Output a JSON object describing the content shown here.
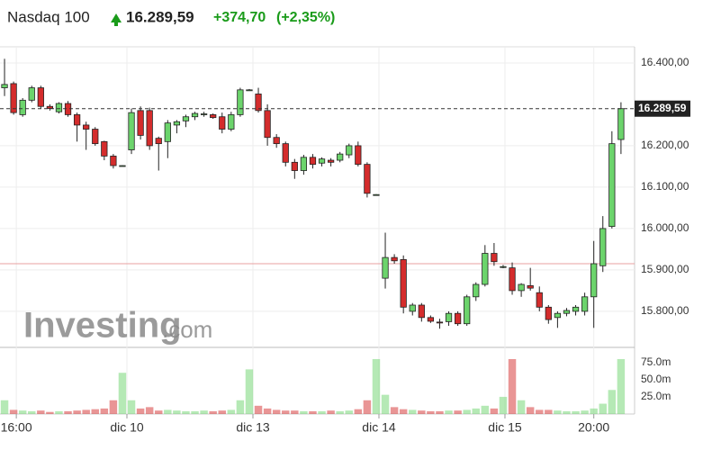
{
  "header": {
    "title": "Nasdaq 100",
    "price": "16.289,59",
    "change": "+374,70",
    "change_pct": "(+2,35%)"
  },
  "chart_data": {
    "type": "candlestick",
    "brand": "Investing",
    "brand_suffix": ".com",
    "up_color": "#6cd46c",
    "down_color": "#d42c2c",
    "candles": [
      [
        16340,
        16410,
        16320,
        16348
      ],
      [
        16350,
        16355,
        16275,
        16280
      ],
      [
        16275,
        16315,
        16270,
        16310
      ],
      [
        16310,
        16345,
        16305,
        16340
      ],
      [
        16340,
        16345,
        16290,
        16295
      ],
      [
        16295,
        16300,
        16285,
        16290
      ],
      [
        16282,
        16305,
        16278,
        16302
      ],
      [
        16302,
        16308,
        16270,
        16275
      ],
      [
        16275,
        16280,
        16210,
        16250
      ],
      [
        16250,
        16258,
        16190,
        16240
      ],
      [
        16240,
        16245,
        16200,
        16205
      ],
      [
        16210,
        16212,
        16165,
        16175
      ],
      [
        16175,
        16180,
        16145,
        16152
      ],
      [
        16152,
        16153,
        16151,
        16152
      ],
      [
        16190,
        16290,
        16180,
        16280
      ],
      [
        16285,
        16295,
        16215,
        16225
      ],
      [
        16285,
        16292,
        16190,
        16200
      ],
      [
        16218,
        16222,
        16140,
        16205
      ],
      [
        16210,
        16262,
        16170,
        16255
      ],
      [
        16250,
        16262,
        16230,
        16258
      ],
      [
        16260,
        16275,
        16245,
        16270
      ],
      [
        16270,
        16282,
        16262,
        16278
      ],
      [
        16275,
        16282,
        16270,
        16277
      ],
      [
        16275,
        16278,
        16265,
        16268
      ],
      [
        16270,
        16280,
        16230,
        16240
      ],
      [
        16240,
        16282,
        16235,
        16275
      ],
      [
        16275,
        16340,
        16270,
        16335
      ],
      [
        16335,
        16337,
        16333,
        16335
      ],
      [
        16325,
        16340,
        16280,
        16285
      ],
      [
        16285,
        16300,
        16200,
        16220
      ],
      [
        16220,
        16228,
        16195,
        16205
      ],
      [
        16205,
        16210,
        16150,
        16160
      ],
      [
        16160,
        16168,
        16120,
        16140
      ],
      [
        16140,
        16178,
        16130,
        16172
      ],
      [
        16172,
        16180,
        16145,
        16155
      ],
      [
        16158,
        16172,
        16150,
        16168
      ],
      [
        16165,
        16170,
        16150,
        16160
      ],
      [
        16165,
        16185,
        16160,
        16180
      ],
      [
        16178,
        16205,
        16170,
        16200
      ],
      [
        16200,
        16210,
        16150,
        16155
      ],
      [
        16155,
        16160,
        16075,
        16085
      ],
      [
        16082,
        16083,
        16081,
        16082
      ],
      [
        15880,
        15990,
        15855,
        15930
      ],
      [
        15930,
        15938,
        15915,
        15922
      ],
      [
        15925,
        15935,
        15795,
        15810
      ],
      [
        15800,
        15820,
        15790,
        15815
      ],
      [
        15815,
        15820,
        15775,
        15785
      ],
      [
        15785,
        15790,
        15772,
        15776
      ],
      [
        15774,
        15782,
        15758,
        15772
      ],
      [
        15775,
        15800,
        15765,
        15795
      ],
      [
        15795,
        15800,
        15765,
        15770
      ],
      [
        15770,
        15840,
        15765,
        15835
      ],
      [
        15835,
        15870,
        15825,
        15865
      ],
      [
        15865,
        15960,
        15860,
        15940
      ],
      [
        15940,
        15965,
        15910,
        15920
      ],
      [
        15908,
        15912,
        15904,
        15908
      ],
      [
        15905,
        15918,
        15840,
        15850
      ],
      [
        15850,
        15868,
        15835,
        15865
      ],
      [
        15862,
        15905,
        15850,
        15856
      ],
      [
        15845,
        15860,
        15800,
        15810
      ],
      [
        15810,
        15815,
        15770,
        15780
      ],
      [
        15785,
        15800,
        15760,
        15795
      ],
      [
        15795,
        15808,
        15788,
        15802
      ],
      [
        15800,
        15815,
        15790,
        15810
      ],
      [
        15800,
        15845,
        15790,
        15835
      ],
      [
        15835,
        15970,
        15760,
        15915
      ],
      [
        15910,
        16030,
        15895,
        16000
      ],
      [
        16005,
        16235,
        16000,
        16205
      ],
      [
        16215,
        16305,
        16180,
        16289.59
      ]
    ],
    "volumes": [
      20,
      6,
      5,
      4,
      5,
      3,
      4,
      4,
      5,
      6,
      7,
      8,
      20,
      60,
      20,
      8,
      10,
      5,
      6,
      5,
      4,
      4,
      5,
      4,
      5,
      6,
      20,
      65,
      12,
      8,
      6,
      5,
      5,
      4,
      4,
      4,
      5,
      4,
      5,
      7,
      20,
      80,
      28,
      10,
      7,
      6,
      5,
      4,
      4,
      5,
      5,
      6,
      8,
      12,
      8,
      25,
      80,
      20,
      10,
      6,
      6,
      5,
      4,
      4,
      5,
      8,
      15,
      35,
      80
    ],
    "last_price": {
      "value": 16289.59,
      "label": "16.289,59"
    },
    "reference_line": 15915,
    "ylim": [
      15715,
      16439
    ],
    "yticks": [
      {
        "value": 15800,
        "label": "15.800,00"
      },
      {
        "value": 15900,
        "label": "15.900,00"
      },
      {
        "value": 16000,
        "label": "16.000,00"
      },
      {
        "value": 16100,
        "label": "16.100,00"
      },
      {
        "value": 16200,
        "label": "16.200,00"
      },
      {
        "value": 16400,
        "label": "16.400,00"
      }
    ],
    "vlim": [
      0,
      97
    ],
    "vticks": [
      {
        "value": 25,
        "label": "25.0m"
      },
      {
        "value": 50,
        "label": "50.0m"
      },
      {
        "value": 75,
        "label": "75.0m"
      }
    ],
    "xlim": [
      -0.5,
      69.5
    ],
    "xticks": [
      {
        "value": 1.3,
        "label": "16:00"
      },
      {
        "value": 13.5,
        "label": "dic 10"
      },
      {
        "value": 27.4,
        "label": "dic 13"
      },
      {
        "value": 41.3,
        "label": "dic 14"
      },
      {
        "value": 55.2,
        "label": "dic 15"
      },
      {
        "value": 65,
        "label": "20:00"
      }
    ],
    "grid": true
  }
}
